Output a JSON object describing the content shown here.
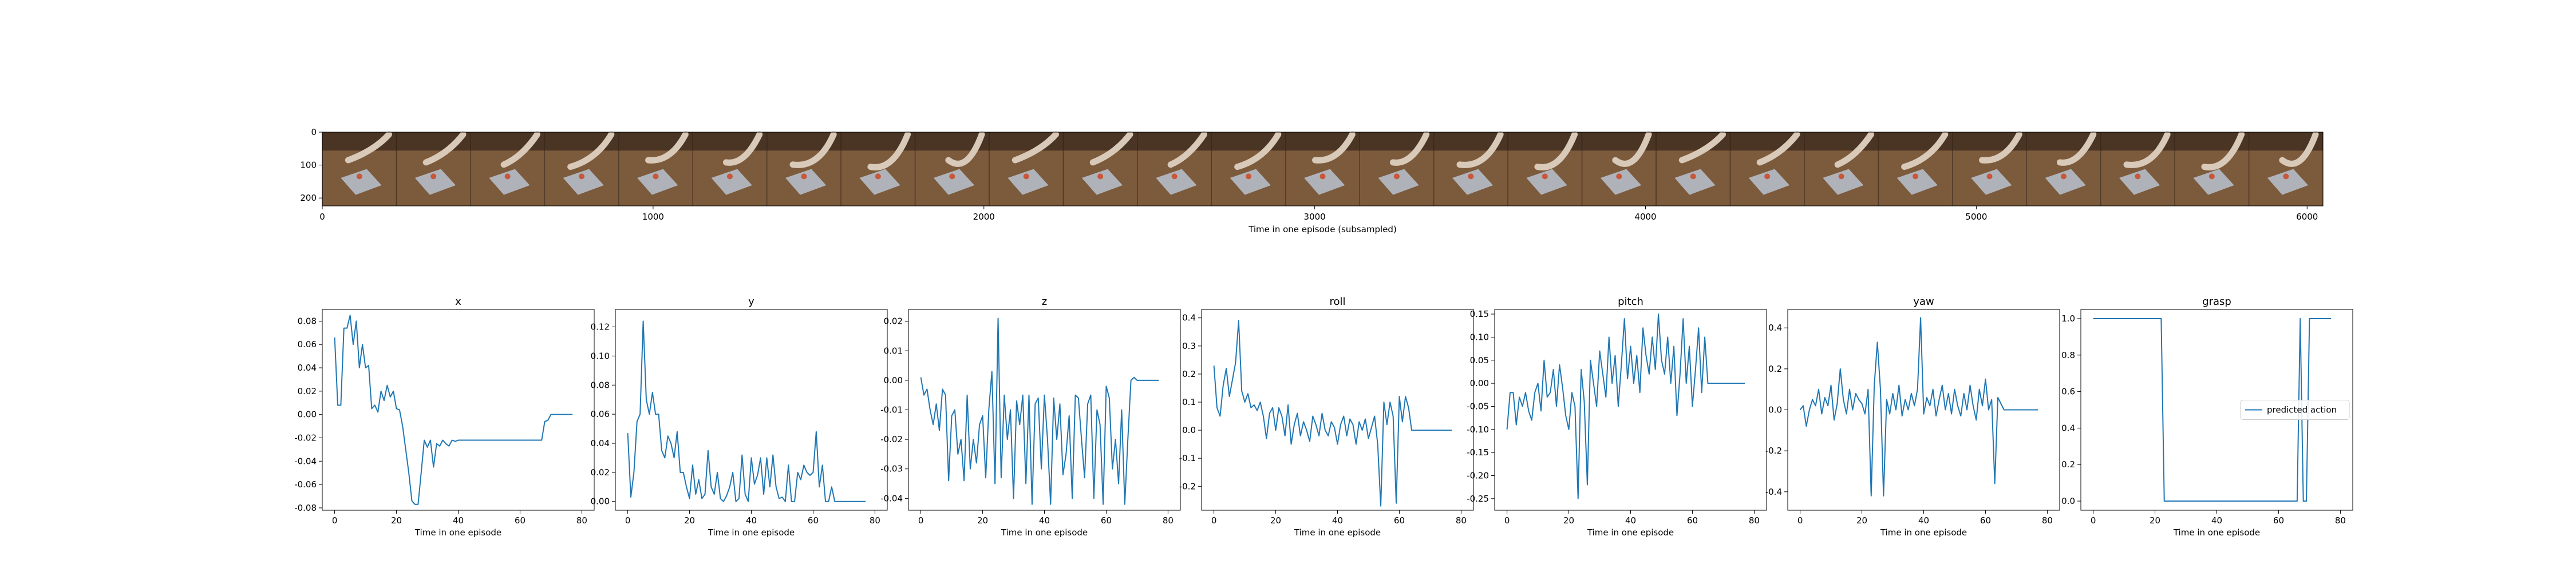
{
  "chart_data": [
    {
      "type": "image",
      "xlabel": "Time in one episode (subsampled)",
      "xlim": [
        0,
        6048
      ],
      "ylim": [
        224,
        0
      ],
      "x_ticks": [
        0,
        1000,
        2000,
        3000,
        4000,
        5000,
        6000
      ],
      "y_ticks": [
        0,
        100,
        200
      ],
      "frame_count": 27,
      "colors": {
        "table": "#7c5a3c",
        "wall": "#4a3423",
        "arm": "#d8c9b8",
        "mat": "#b9c3cf"
      }
    },
    {
      "type": "line",
      "title": "x",
      "xlabel": "Time in one episode",
      "xlim": [
        -4,
        84
      ],
      "ylim": [
        -0.082,
        0.09
      ],
      "x_ticks": [
        0,
        20,
        40,
        60,
        80
      ],
      "y_ticks": [
        -0.08,
        -0.06,
        -0.04,
        -0.02,
        0.0,
        0.02,
        0.04,
        0.06,
        0.08
      ],
      "y_decimals": 2,
      "series": [
        {
          "color": "#1f77b4",
          "values": [
            0.066,
            0.008,
            0.008,
            0.074,
            0.074,
            0.085,
            0.06,
            0.08,
            0.04,
            0.06,
            0.04,
            0.042,
            0.005,
            0.008,
            0.002,
            0.02,
            0.012,
            0.025,
            0.015,
            0.02,
            0.005,
            0.004,
            -0.01,
            -0.03,
            -0.05,
            -0.074,
            -0.077,
            -0.077,
            -0.05,
            -0.022,
            -0.028,
            -0.022,
            -0.045,
            -0.025,
            -0.027,
            -0.022,
            -0.025,
            -0.027,
            -0.022,
            -0.023,
            -0.022,
            -0.022,
            -0.022,
            -0.022,
            -0.022,
            -0.022,
            -0.022,
            -0.022,
            -0.022,
            -0.022,
            -0.022,
            -0.022,
            -0.022,
            -0.022,
            -0.022,
            -0.022,
            -0.022,
            -0.022,
            -0.022,
            -0.022,
            -0.022,
            -0.022,
            -0.022,
            -0.022,
            -0.022,
            -0.022,
            -0.022,
            -0.022,
            -0.006,
            -0.005,
            0.0,
            0.0,
            0.0,
            0.0,
            0.0,
            0.0,
            0.0,
            0.0
          ]
        }
      ]
    },
    {
      "type": "line",
      "title": "y",
      "xlabel": "Time in one episode",
      "xlim": [
        -4,
        84
      ],
      "ylim": [
        -0.006,
        0.132
      ],
      "x_ticks": [
        0,
        20,
        40,
        60,
        80
      ],
      "y_ticks": [
        0.0,
        0.02,
        0.04,
        0.06,
        0.08,
        0.1,
        0.12
      ],
      "y_decimals": 2,
      "series": [
        {
          "color": "#1f77b4",
          "values": [
            0.047,
            0.003,
            0.02,
            0.055,
            0.06,
            0.124,
            0.07,
            0.06,
            0.075,
            0.06,
            0.06,
            0.035,
            0.03,
            0.045,
            0.04,
            0.03,
            0.048,
            0.02,
            0.02,
            0.01,
            0.002,
            0.025,
            0.005,
            0.015,
            0.002,
            0.005,
            0.035,
            0.01,
            0.005,
            0.02,
            0.002,
            0.0,
            0.004,
            0.01,
            0.02,
            0.0,
            0.002,
            0.032,
            0.005,
            0.0,
            0.03,
            0.012,
            0.018,
            0.03,
            0.005,
            0.03,
            0.01,
            0.032,
            0.01,
            0.002,
            0.003,
            0.0,
            0.025,
            0.0,
            0.0,
            0.02,
            0.015,
            0.025,
            0.02,
            0.018,
            0.02,
            0.048,
            0.01,
            0.025,
            0.0,
            0.0,
            0.01,
            0.0,
            0.0,
            0.0,
            0.0,
            0.0,
            0.0,
            0.0,
            0.0,
            0.0,
            0.0,
            0.0
          ]
        }
      ]
    },
    {
      "type": "line",
      "title": "z",
      "xlabel": "Time in one episode",
      "xlim": [
        -4,
        84
      ],
      "ylim": [
        -0.044,
        0.024
      ],
      "x_ticks": [
        0,
        20,
        40,
        60,
        80
      ],
      "y_ticks": [
        -0.04,
        -0.03,
        -0.02,
        -0.01,
        0.0,
        0.01,
        0.02
      ],
      "y_decimals": 2,
      "series": [
        {
          "color": "#1f77b4",
          "values": [
            0.001,
            -0.005,
            -0.003,
            -0.01,
            -0.015,
            -0.008,
            -0.017,
            -0.003,
            -0.005,
            -0.034,
            -0.012,
            -0.01,
            -0.025,
            -0.02,
            -0.034,
            -0.005,
            -0.03,
            -0.02,
            -0.028,
            -0.015,
            -0.012,
            -0.033,
            -0.01,
            0.003,
            -0.035,
            0.021,
            -0.033,
            -0.005,
            -0.02,
            -0.01,
            -0.04,
            -0.007,
            -0.015,
            -0.005,
            -0.035,
            -0.005,
            -0.042,
            -0.008,
            -0.006,
            -0.03,
            -0.005,
            -0.02,
            -0.042,
            -0.006,
            -0.02,
            -0.008,
            -0.032,
            -0.025,
            -0.012,
            -0.04,
            -0.005,
            -0.006,
            -0.02,
            -0.033,
            -0.008,
            -0.005,
            -0.04,
            -0.01,
            -0.015,
            -0.042,
            -0.002,
            -0.006,
            -0.03,
            -0.02,
            -0.035,
            -0.01,
            -0.042,
            -0.02,
            0.0,
            0.001,
            0.0,
            0.0,
            0.0,
            0.0,
            0.0,
            0.0,
            0.0,
            0.0
          ]
        }
      ]
    },
    {
      "type": "line",
      "title": "roll",
      "xlabel": "Time in one episode",
      "xlim": [
        -4,
        84
      ],
      "ylim": [
        -0.285,
        0.43
      ],
      "x_ticks": [
        0,
        20,
        40,
        60,
        80
      ],
      "y_ticks": [
        -0.2,
        -0.1,
        0.0,
        0.1,
        0.2,
        0.3,
        0.4
      ],
      "y_decimals": 1,
      "series": [
        {
          "color": "#1f77b4",
          "values": [
            0.23,
            0.08,
            0.05,
            0.16,
            0.22,
            0.12,
            0.18,
            0.24,
            0.39,
            0.14,
            0.1,
            0.13,
            0.08,
            0.09,
            0.07,
            0.1,
            0.05,
            -0.03,
            0.06,
            0.08,
            0.0,
            0.08,
            0.05,
            -0.02,
            0.09,
            -0.05,
            0.02,
            0.06,
            -0.02,
            0.03,
            0.0,
            -0.04,
            0.05,
            0.02,
            -0.02,
            0.06,
            0.0,
            -0.02,
            0.03,
            0.01,
            -0.05,
            0.02,
            0.05,
            -0.02,
            0.04,
            0.02,
            -0.05,
            0.03,
            0.0,
            0.04,
            -0.03,
            0.01,
            0.05,
            -0.05,
            -0.27,
            0.1,
            0.02,
            0.1,
            0.05,
            -0.26,
            0.12,
            0.03,
            0.12,
            0.08,
            0.0,
            0.0,
            0.0,
            0.0,
            0.0,
            0.0,
            0.0,
            0.0,
            0.0,
            0.0,
            0.0,
            0.0,
            0.0,
            0.0
          ]
        }
      ]
    },
    {
      "type": "line",
      "title": "pitch",
      "xlabel": "Time in one episode",
      "xlim": [
        -4,
        84
      ],
      "ylim": [
        -0.275,
        0.16
      ],
      "x_ticks": [
        0,
        20,
        40,
        60,
        80
      ],
      "y_ticks": [
        -0.25,
        -0.2,
        -0.15,
        -0.1,
        -0.05,
        0.0,
        0.05,
        0.1,
        0.15
      ],
      "y_decimals": 2,
      "series": [
        {
          "color": "#1f77b4",
          "values": [
            -0.1,
            -0.02,
            -0.02,
            -0.09,
            -0.03,
            -0.05,
            -0.02,
            -0.06,
            -0.08,
            -0.02,
            0.0,
            -0.06,
            0.05,
            -0.03,
            -0.02,
            0.03,
            -0.05,
            0.04,
            -0.01,
            -0.07,
            -0.1,
            -0.02,
            -0.05,
            -0.25,
            0.03,
            -0.04,
            -0.22,
            0.05,
            0.0,
            -0.05,
            0.07,
            0.02,
            -0.03,
            0.1,
            0.0,
            0.06,
            -0.05,
            0.04,
            0.14,
            0.01,
            0.08,
            0.0,
            0.06,
            -0.02,
            0.12,
            0.06,
            0.02,
            0.1,
            0.03,
            0.15,
            0.05,
            0.02,
            0.1,
            0.0,
            0.08,
            -0.07,
            0.02,
            0.14,
            0.0,
            0.08,
            -0.05,
            0.03,
            0.12,
            -0.02,
            0.1,
            0.0,
            0.0,
            0.0,
            0.0,
            0.0,
            0.0,
            0.0,
            0.0,
            0.0,
            0.0,
            0.0,
            0.0,
            0.0
          ]
        }
      ]
    },
    {
      "type": "line",
      "title": "yaw",
      "xlabel": "Time in one episode",
      "xlim": [
        -4,
        84
      ],
      "ylim": [
        -0.49,
        0.49
      ],
      "x_ticks": [
        0,
        20,
        40,
        60,
        80
      ],
      "y_ticks": [
        -0.4,
        -0.2,
        0.0,
        0.2,
        0.4
      ],
      "y_decimals": 1,
      "series": [
        {
          "color": "#1f77b4",
          "values": [
            0.0,
            0.02,
            -0.08,
            0.0,
            0.05,
            0.02,
            0.1,
            -0.02,
            0.06,
            0.02,
            0.12,
            -0.05,
            0.03,
            0.2,
            0.05,
            -0.02,
            0.1,
            0.0,
            0.08,
            0.05,
            0.03,
            -0.02,
            0.1,
            -0.42,
            0.12,
            0.33,
            0.1,
            -0.42,
            0.05,
            -0.02,
            0.08,
            0.0,
            0.12,
            -0.03,
            0.05,
            0.0,
            0.08,
            0.02,
            0.1,
            0.45,
            -0.02,
            0.06,
            0.02,
            0.1,
            -0.03,
            0.05,
            0.12,
            0.0,
            0.08,
            -0.02,
            0.1,
            0.02,
            -0.03,
            0.08,
            0.0,
            0.12,
            0.02,
            -0.05,
            0.1,
            0.02,
            0.15,
            0.0,
            0.05,
            -0.36,
            0.06,
            0.03,
            0.0,
            0.0,
            0.0,
            0.0,
            0.0,
            0.0,
            0.0,
            0.0,
            0.0,
            0.0,
            0.0,
            0.0
          ]
        }
      ]
    },
    {
      "type": "line",
      "title": "grasp",
      "xlabel": "Time in one episode",
      "xlim": [
        -4,
        84
      ],
      "ylim": [
        -0.05,
        1.05
      ],
      "x_ticks": [
        0,
        20,
        40,
        60,
        80
      ],
      "y_ticks": [
        0.0,
        0.2,
        0.4,
        0.6,
        0.8,
        1.0
      ],
      "y_decimals": 1,
      "legend": {
        "label": "predicted action",
        "position": "center-right"
      },
      "series": [
        {
          "color": "#1f77b4",
          "values": [
            1,
            1,
            1,
            1,
            1,
            1,
            1,
            1,
            1,
            1,
            1,
            1,
            1,
            1,
            1,
            1,
            1,
            1,
            1,
            1,
            1,
            1,
            1,
            0,
            0,
            0,
            0,
            0,
            0,
            0,
            0,
            0,
            0,
            0,
            0,
            0,
            0,
            0,
            0,
            0,
            0,
            0,
            0,
            0,
            0,
            0,
            0,
            0,
            0,
            0,
            0,
            0,
            0,
            0,
            0,
            0,
            0,
            0,
            0,
            0,
            0,
            0,
            0,
            0,
            0,
            0,
            0,
            1,
            0,
            0,
            1,
            1,
            1,
            1,
            1,
            1,
            1,
            1
          ]
        }
      ]
    }
  ]
}
